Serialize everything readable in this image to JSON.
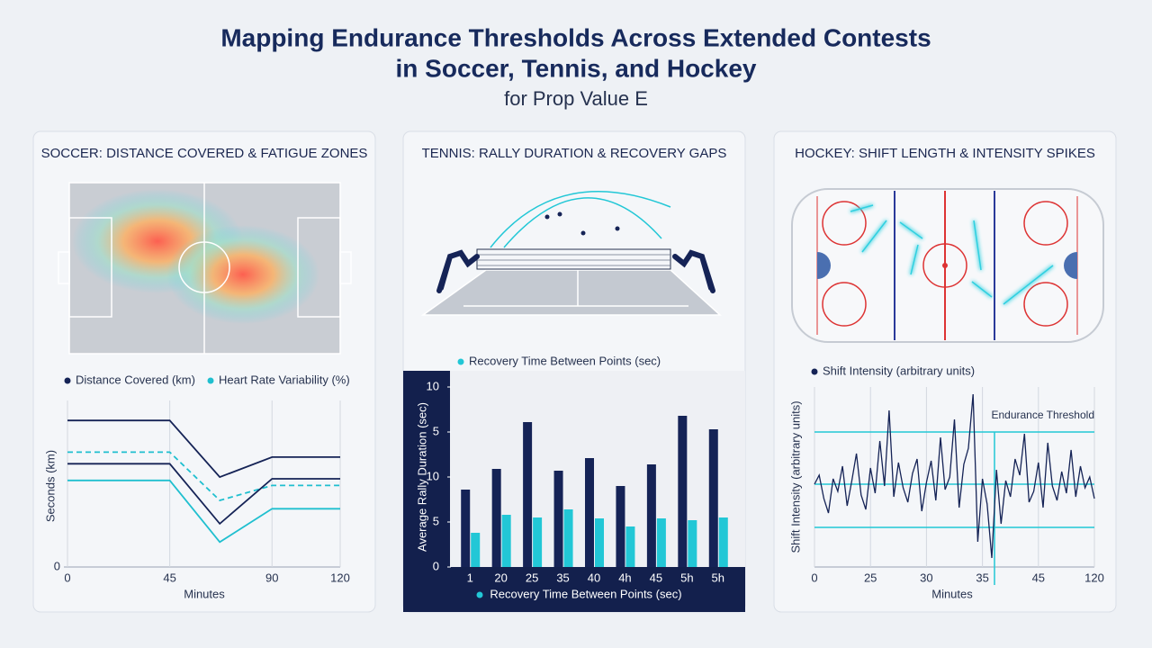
{
  "header": {
    "title_lines": [
      "Mapping Endurance Thresholds Across Extended Contests",
      "in Soccer, Tennis, and Hockey"
    ],
    "subtitle": "for Prop Value E"
  },
  "chart_data": [
    {
      "type": "line",
      "title": "SOCCER: DISTANCE COVERED & FATIGUE ZONES",
      "x": [
        0,
        45,
        67,
        90,
        120
      ],
      "xlim": [
        0,
        120
      ],
      "xticks": [
        0,
        45,
        90,
        120
      ],
      "ylim": [
        0,
        10
      ],
      "yticks": [
        0
      ],
      "x_label": "Minutes",
      "y_label": "Seconds (km)",
      "grid": true,
      "series": [
        {
          "name": "Distance Covered (km)",
          "color": "#152356",
          "values": [
            8.8,
            8.8,
            5.4,
            6.6,
            6.6
          ]
        },
        {
          "name": "Heart Rate Variability (%)",
          "color": "#1fbfcf",
          "dashed": true,
          "values": [
            6.9,
            6.9,
            4.0,
            4.9,
            4.9
          ]
        },
        {
          "color": "#152356",
          "values": [
            6.2,
            6.2,
            2.6,
            5.3,
            5.3
          ]
        },
        {
          "color": "#1fbfcf",
          "values": [
            5.2,
            5.2,
            1.5,
            3.5,
            3.5
          ]
        }
      ]
    },
    {
      "type": "bar",
      "title": "TENNIS: RALLY DURATION & RECOVERY GAPS",
      "categories": [
        "1",
        "20",
        "25",
        "35",
        "40",
        "4h",
        "45",
        "5h",
        "5h"
      ],
      "ylim": [
        0,
        20
      ],
      "yticks": [
        0,
        5,
        10,
        {
          "value": 15,
          "label": "5"
        },
        {
          "value": 20,
          "label": "10"
        }
      ],
      "x_label": "Recovery Time Between Points (sec)",
      "y_label": "Average Rally Duration (sec)",
      "series": [
        {
          "color": "#152356",
          "values": [
            8.6,
            10.9,
            16.1,
            10.7,
            12.1,
            9.0,
            11.4,
            16.8,
            15.3
          ]
        },
        {
          "name": "Recovery Time Between Points (sec)",
          "color": "#22c7d6",
          "values": [
            3.8,
            5.8,
            5.5,
            6.4,
            5.4,
            4.5,
            5.4,
            5.2,
            5.5
          ]
        }
      ]
    },
    {
      "type": "line",
      "title": "HOCKEY: SHIFT LENGTH & INTENSITY SPIKES",
      "x_tick_labels": [
        "0",
        "25",
        "30",
        "35",
        "45",
        "120"
      ],
      "ylim": [
        0,
        10
      ],
      "x_label": "Minutes",
      "y_label": "Shift Intensity (arbitrary units)",
      "grid": true,
      "thresholds": [
        7.5,
        4.6,
        2.2
      ],
      "threshold_label": "Endurance Threshold",
      "series": [
        {
          "name": "Shift Intensity (arbitrary units)",
          "color": "#152356",
          "values": [
            4.6,
            5.1,
            3.8,
            3.0,
            4.9,
            4.2,
            5.6,
            3.4,
            4.8,
            6.3,
            4.0,
            3.2,
            5.5,
            4.1,
            7.0,
            4.5,
            8.7,
            3.9,
            5.8,
            4.4,
            3.6,
            5.2,
            6.0,
            3.1,
            4.7,
            5.9,
            3.7,
            7.2,
            4.3,
            5.0,
            8.2,
            3.3,
            5.7,
            6.6,
            9.6,
            1.4,
            4.9,
            3.5,
            0.5,
            5.4,
            2.4,
            4.8,
            3.9,
            6.0,
            5.1,
            7.4,
            3.6,
            4.2,
            5.8,
            3.3,
            6.9,
            4.5,
            3.7,
            5.3,
            4.1,
            6.5,
            3.9,
            5.6,
            4.4,
            5.0,
            3.8
          ]
        }
      ]
    }
  ]
}
